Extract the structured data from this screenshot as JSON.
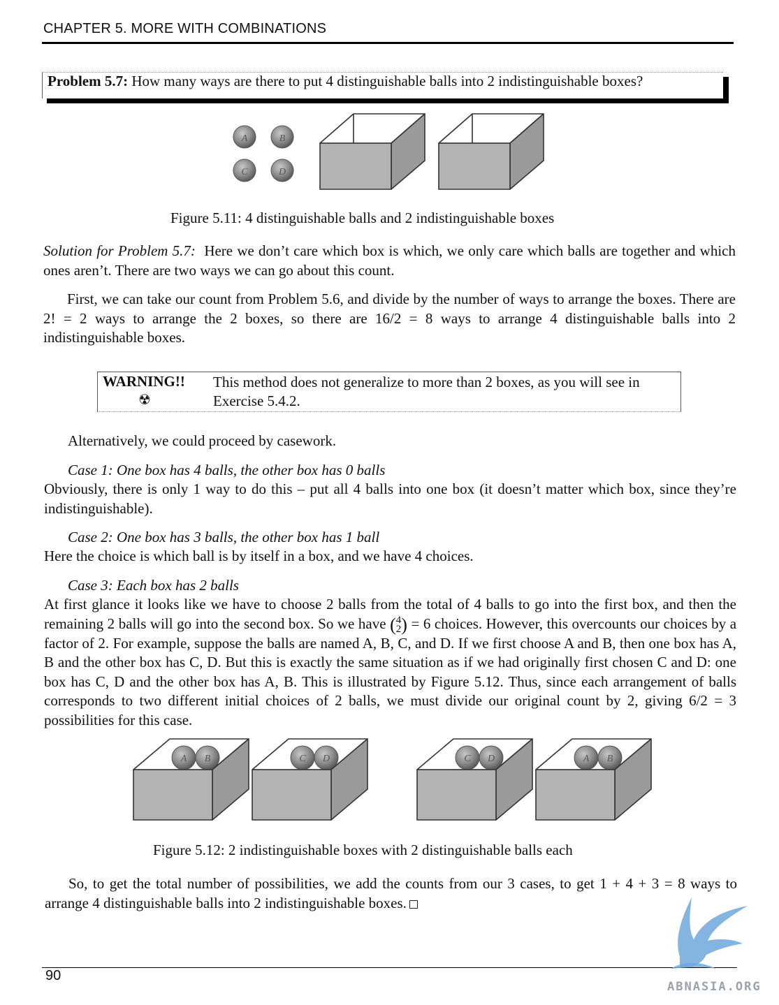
{
  "header": {
    "chapter": "CHAPTER 5.  MORE WITH COMBINATIONS"
  },
  "problem": {
    "label": "Problem 5.7:",
    "text": "How many ways are there to put 4 distinguishable balls into 2 indistinguishable boxes?"
  },
  "figure1": {
    "balls": [
      "A",
      "B",
      "C",
      "D"
    ],
    "caption": "Figure 5.11: 4 distinguishable balls and 2 indistinguishable boxes"
  },
  "solution": {
    "label": "Solution for Problem 5.7:",
    "intro": "Here we don’t care which box is which, we only care which balls are together and which ones aren’t. There are two ways we can go about this count.",
    "para1": "First, we can take our count from Problem 5.6, and divide by the number of ways to arrange the boxes. There are 2! = 2 ways to arrange the 2 boxes, so there are 16/2 = 8 ways to arrange 4 distinguishable balls into 2 indistinguishable boxes."
  },
  "warning": {
    "label": "WARNING!!",
    "icon": "radiation-icon",
    "text": "This method does not generalize to more than 2 boxes, as you will see in Exercise 5.4.2."
  },
  "casework": {
    "intro": "Alternatively, we could proceed by casework.",
    "case1_title": "Case 1: One box has 4 balls, the other box has 0 balls",
    "case1_text": "Obviously, there is only 1 way to do this – put all 4 balls into one box (it doesn’t matter which box, since they’re indistinguishable).",
    "case2_title": "Case 2: One box has 3 balls, the other box has 1 ball",
    "case2_text": "Here the choice is which ball is by itself in a box, and we have 4 choices.",
    "case3_title": "Case 3: Each box has 2 balls",
    "case3_text_a": "At first glance it looks like we have to choose 2 balls from the total of 4 balls to go into the first box, and then the remaining 2 balls will go into the second box. So we have",
    "binom_top": "4",
    "binom_bottom": "2",
    "case3_text_b": "= 6 choices. However, this overcounts our choices by a factor of 2. For example, suppose the balls are named A, B, C, and D. If we first choose A and B, then one box has A, B and the other box has C, D. But this is exactly the same situation as if we had originally first chosen C and D: one box has C, D and the other box has A, B. This is illustrated by Figure 5.12. Thus, since each arrangement of balls corresponds to two different initial choices of 2 balls, we must divide our original count by 2, giving 6/2 = 3 possibilities for this case."
  },
  "figure2": {
    "box_labels": [
      [
        "A",
        "B"
      ],
      [
        "C",
        "D"
      ],
      [
        "C",
        "D"
      ],
      [
        "A",
        "B"
      ]
    ],
    "caption": "Figure 5.12: 2 indistinguishable boxes with 2 distinguishable balls each"
  },
  "conclusion": {
    "text": "So, to get the total number of possibilities, we add the counts from our 3 cases, to get 1 + 4 + 3 = 8 ways to arrange 4 distinguishable balls into 2 indistinguishable boxes."
  },
  "footer": {
    "page_number": "90"
  },
  "watermark": {
    "text": "ABNASIA.ORG",
    "icon": "bird-logo-icon"
  }
}
